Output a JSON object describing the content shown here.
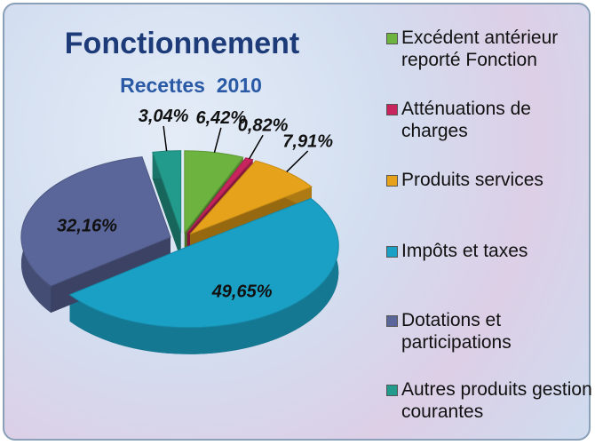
{
  "chart_data": {
    "type": "pie",
    "title": "Fonctionnement",
    "subtitle": "Recettes  2010",
    "categories": [
      "Excédent antérieur reporté Fonction",
      "Atténuations de charges",
      "Produits services",
      "Impôts et taxes",
      "Dotations et participations",
      "Autres produits gestion courantes"
    ],
    "values": [
      6.42,
      0.82,
      7.91,
      49.65,
      32.16,
      3.04
    ],
    "value_labels": [
      "6,42%",
      "0,82%",
      "7,91%",
      "49,65%",
      "32,16%",
      "3,04%"
    ],
    "colors": [
      "#6db33f",
      "#c8245e",
      "#e6a21a",
      "#1aa0c4",
      "#5a6699",
      "#239b8c"
    ],
    "legend": "right"
  }
}
